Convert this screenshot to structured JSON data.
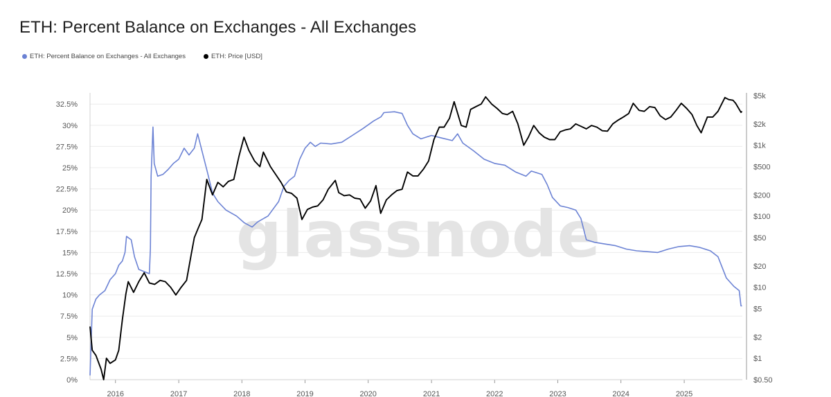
{
  "title": "ETH: Percent Balance on Exchanges - All Exchanges",
  "watermark": "glassnode",
  "legend": [
    {
      "label": "ETH: Percent Balance on Exchanges - All Exchanges",
      "color": "#6b82d4",
      "icon": "legend-dot"
    },
    {
      "label": "ETH: Price [USD]",
      "color": "#000000",
      "icon": "legend-dot"
    }
  ],
  "colors": {
    "balance": "#6b82d4",
    "price": "#000000",
    "grid": "#ececec",
    "axis": "#999999"
  },
  "chart_data": {
    "type": "line",
    "title": "ETH: Percent Balance on Exchanges - All Exchanges",
    "grid": true,
    "legend_position": "top-left",
    "x_ticks": [
      "2016",
      "2017",
      "2018",
      "2019",
      "2020",
      "2021",
      "2022",
      "2023",
      "2024",
      "2025"
    ],
    "y_left_ticks": [
      "0%",
      "2.5%",
      "5%",
      "7.5%",
      "10%",
      "12.5%",
      "15%",
      "17.5%",
      "20%",
      "22.5%",
      "25%",
      "27.5%",
      "30%",
      "32.5%"
    ],
    "y_left_range": [
      0,
      33.5
    ],
    "y_right_ticks": [
      "$0.50",
      "$1",
      "$2",
      "$5",
      "$10",
      "$20",
      "$50",
      "$100",
      "$200",
      "$500",
      "$1k",
      "$2k",
      "$5k"
    ],
    "y_right_scale": "log",
    "y_right_range": [
      0.5,
      5000
    ],
    "series": [
      {
        "name": "ETH: Percent Balance on Exchanges - All Exchanges",
        "axis": "left",
        "color": "#6b82d4",
        "points": [
          [
            "2015-08-07",
            0.5
          ],
          [
            "2015-08-20",
            8.3
          ],
          [
            "2015-09-10",
            9.5
          ],
          [
            "2015-10-01",
            10.0
          ],
          [
            "2015-11-01",
            10.5
          ],
          [
            "2015-12-01",
            11.8
          ],
          [
            "2016-01-01",
            12.5
          ],
          [
            "2016-01-20",
            13.5
          ],
          [
            "2016-02-10",
            14.0
          ],
          [
            "2016-02-25",
            15.0
          ],
          [
            "2016-03-05",
            16.9
          ],
          [
            "2016-04-01",
            16.5
          ],
          [
            "2016-04-20",
            14.5
          ],
          [
            "2016-05-15",
            13.0
          ],
          [
            "2016-07-15",
            12.5
          ],
          [
            "2016-07-21",
            15.5
          ],
          [
            "2016-07-25",
            24.0
          ],
          [
            "2016-08-05",
            29.8
          ],
          [
            "2016-08-12",
            25.5
          ],
          [
            "2016-09-01",
            24.0
          ],
          [
            "2016-10-01",
            24.2
          ],
          [
            "2016-11-01",
            24.8
          ],
          [
            "2016-12-01",
            25.5
          ],
          [
            "2017-01-01",
            26.0
          ],
          [
            "2017-02-01",
            27.3
          ],
          [
            "2017-03-01",
            26.5
          ],
          [
            "2017-04-01",
            27.3
          ],
          [
            "2017-04-20",
            29.0
          ],
          [
            "2017-05-15",
            27.0
          ],
          [
            "2017-06-15",
            24.5
          ],
          [
            "2017-07-15",
            22.0
          ],
          [
            "2017-08-15",
            21.0
          ],
          [
            "2017-10-01",
            20.0
          ],
          [
            "2017-12-01",
            19.3
          ],
          [
            "2018-01-15",
            18.5
          ],
          [
            "2018-03-01",
            18.0
          ],
          [
            "2018-04-01",
            18.6
          ],
          [
            "2018-06-01",
            19.3
          ],
          [
            "2018-08-01",
            21.0
          ],
          [
            "2018-09-01",
            22.8
          ],
          [
            "2018-10-01",
            23.5
          ],
          [
            "2018-11-01",
            24.0
          ],
          [
            "2018-12-01",
            26.0
          ],
          [
            "2019-01-01",
            27.3
          ],
          [
            "2019-02-01",
            28.0
          ],
          [
            "2019-03-01",
            27.5
          ],
          [
            "2019-04-01",
            27.9
          ],
          [
            "2019-06-01",
            27.8
          ],
          [
            "2019-08-01",
            28.0
          ],
          [
            "2019-10-01",
            28.8
          ],
          [
            "2019-12-01",
            29.6
          ],
          [
            "2020-02-01",
            30.5
          ],
          [
            "2020-03-15",
            31.0
          ],
          [
            "2020-04-01",
            31.5
          ],
          [
            "2020-06-01",
            31.6
          ],
          [
            "2020-07-15",
            31.4
          ],
          [
            "2020-08-15",
            30.0
          ],
          [
            "2020-09-15",
            29.0
          ],
          [
            "2020-11-01",
            28.4
          ],
          [
            "2021-01-01",
            28.8
          ],
          [
            "2021-03-01",
            28.5
          ],
          [
            "2021-05-01",
            28.2
          ],
          [
            "2021-06-01",
            29.0
          ],
          [
            "2021-07-01",
            27.9
          ],
          [
            "2021-09-01",
            27.0
          ],
          [
            "2021-11-01",
            26.0
          ],
          [
            "2022-01-01",
            25.5
          ],
          [
            "2022-03-01",
            25.3
          ],
          [
            "2022-05-01",
            24.5
          ],
          [
            "2022-07-01",
            24.0
          ],
          [
            "2022-08-01",
            24.6
          ],
          [
            "2022-10-01",
            24.2
          ],
          [
            "2022-11-01",
            23.0
          ],
          [
            "2022-12-01",
            21.5
          ],
          [
            "2023-01-15",
            20.5
          ],
          [
            "2023-03-01",
            20.3
          ],
          [
            "2023-04-15",
            20.0
          ],
          [
            "2023-05-15",
            19.0
          ],
          [
            "2023-06-15",
            16.5
          ],
          [
            "2023-08-01",
            16.2
          ],
          [
            "2023-10-01",
            16.0
          ],
          [
            "2023-12-01",
            15.8
          ],
          [
            "2024-02-01",
            15.4
          ],
          [
            "2024-04-01",
            15.2
          ],
          [
            "2024-06-01",
            15.1
          ],
          [
            "2024-08-01",
            15.0
          ],
          [
            "2024-10-01",
            15.4
          ],
          [
            "2024-12-01",
            15.7
          ],
          [
            "2025-02-01",
            15.8
          ],
          [
            "2025-04-01",
            15.6
          ],
          [
            "2025-06-01",
            15.2
          ],
          [
            "2025-07-15",
            14.5
          ],
          [
            "2025-09-01",
            12.0
          ],
          [
            "2025-10-15",
            11.0
          ],
          [
            "2025-11-15",
            10.5
          ],
          [
            "2025-11-25",
            8.7
          ],
          [
            "2025-12-01",
            8.7
          ]
        ]
      },
      {
        "name": "ETH: Price [USD]",
        "axis": "right",
        "color": "#000000",
        "points": [
          [
            "2015-08-07",
            2.8
          ],
          [
            "2015-08-20",
            1.3
          ],
          [
            "2015-09-10",
            1.1
          ],
          [
            "2015-10-10",
            0.7
          ],
          [
            "2015-10-25",
            0.5
          ],
          [
            "2015-11-10",
            1.0
          ],
          [
            "2015-12-01",
            0.85
          ],
          [
            "2016-01-01",
            0.95
          ],
          [
            "2016-01-20",
            1.3
          ],
          [
            "2016-02-10",
            3.5
          ],
          [
            "2016-03-01",
            8.0
          ],
          [
            "2016-03-15",
            12.0
          ],
          [
            "2016-04-15",
            8.5
          ],
          [
            "2016-05-15",
            12.0
          ],
          [
            "2016-06-15",
            16.0
          ],
          [
            "2016-07-15",
            11.5
          ],
          [
            "2016-08-15",
            11.0
          ],
          [
            "2016-09-15",
            12.5
          ],
          [
            "2016-10-15",
            12.0
          ],
          [
            "2016-11-15",
            10.0
          ],
          [
            "2016-12-15",
            7.8
          ],
          [
            "2017-01-15",
            10.0
          ],
          [
            "2017-02-15",
            12.5
          ],
          [
            "2017-03-15",
            30.0
          ],
          [
            "2017-04-01",
            50.0
          ],
          [
            "2017-04-20",
            65.0
          ],
          [
            "2017-05-15",
            90.0
          ],
          [
            "2017-06-12",
            330.0
          ],
          [
            "2017-07-15",
            200.0
          ],
          [
            "2017-08-15",
            300.0
          ],
          [
            "2017-09-15",
            260.0
          ],
          [
            "2017-10-15",
            310.0
          ],
          [
            "2017-11-15",
            330.0
          ],
          [
            "2017-12-15",
            700.0
          ],
          [
            "2018-01-13",
            1300.0
          ],
          [
            "2018-02-10",
            850.0
          ],
          [
            "2018-03-15",
            600.0
          ],
          [
            "2018-04-15",
            500.0
          ],
          [
            "2018-05-05",
            800.0
          ],
          [
            "2018-06-15",
            500.0
          ],
          [
            "2018-08-15",
            300.0
          ],
          [
            "2018-09-15",
            220.0
          ],
          [
            "2018-10-15",
            210.0
          ],
          [
            "2018-11-15",
            180.0
          ],
          [
            "2018-12-14",
            90.0
          ],
          [
            "2019-01-15",
            125.0
          ],
          [
            "2019-02-15",
            135.0
          ],
          [
            "2019-03-15",
            140.0
          ],
          [
            "2019-04-15",
            170.0
          ],
          [
            "2019-05-15",
            240.0
          ],
          [
            "2019-06-25",
            320.0
          ],
          [
            "2019-07-15",
            215.0
          ],
          [
            "2019-08-15",
            195.0
          ],
          [
            "2019-09-15",
            200.0
          ],
          [
            "2019-10-15",
            180.0
          ],
          [
            "2019-11-15",
            175.0
          ],
          [
            "2019-12-15",
            130.0
          ],
          [
            "2020-01-15",
            165.0
          ],
          [
            "2020-02-15",
            270.0
          ],
          [
            "2020-03-13",
            110.0
          ],
          [
            "2020-04-15",
            170.0
          ],
          [
            "2020-05-15",
            200.0
          ],
          [
            "2020-06-15",
            230.0
          ],
          [
            "2020-07-15",
            240.0
          ],
          [
            "2020-08-15",
            420.0
          ],
          [
            "2020-09-15",
            370.0
          ],
          [
            "2020-10-15",
            370.0
          ],
          [
            "2020-11-15",
            460.0
          ],
          [
            "2020-12-15",
            600.0
          ],
          [
            "2021-01-15",
            1200.0
          ],
          [
            "2021-02-15",
            1800.0
          ],
          [
            "2021-03-15",
            1800.0
          ],
          [
            "2021-04-15",
            2400.0
          ],
          [
            "2021-05-12",
            4100.0
          ],
          [
            "2021-06-22",
            1900.0
          ],
          [
            "2021-07-20",
            1800.0
          ],
          [
            "2021-08-15",
            3200.0
          ],
          [
            "2021-09-15",
            3500.0
          ],
          [
            "2021-10-15",
            3800.0
          ],
          [
            "2021-11-10",
            4800.0
          ],
          [
            "2021-12-15",
            3800.0
          ],
          [
            "2022-01-15",
            3300.0
          ],
          [
            "2022-02-15",
            2800.0
          ],
          [
            "2022-03-15",
            2700.0
          ],
          [
            "2022-04-15",
            3000.0
          ],
          [
            "2022-05-15",
            2000.0
          ],
          [
            "2022-06-18",
            1000.0
          ],
          [
            "2022-07-15",
            1300.0
          ],
          [
            "2022-08-15",
            1900.0
          ],
          [
            "2022-09-15",
            1500.0
          ],
          [
            "2022-10-15",
            1300.0
          ],
          [
            "2022-11-15",
            1200.0
          ],
          [
            "2022-12-15",
            1200.0
          ],
          [
            "2023-01-15",
            1550.0
          ],
          [
            "2023-02-15",
            1650.0
          ],
          [
            "2023-03-15",
            1700.0
          ],
          [
            "2023-04-15",
            2000.0
          ],
          [
            "2023-05-15",
            1850.0
          ],
          [
            "2023-06-15",
            1700.0
          ],
          [
            "2023-07-15",
            1900.0
          ],
          [
            "2023-08-15",
            1800.0
          ],
          [
            "2023-09-15",
            1600.0
          ],
          [
            "2023-10-15",
            1580.0
          ],
          [
            "2023-11-15",
            2000.0
          ],
          [
            "2023-12-15",
            2250.0
          ],
          [
            "2024-01-15",
            2500.0
          ],
          [
            "2024-02-15",
            2800.0
          ],
          [
            "2024-03-12",
            3900.0
          ],
          [
            "2024-04-15",
            3100.0
          ],
          [
            "2024-05-15",
            3000.0
          ],
          [
            "2024-06-15",
            3500.0
          ],
          [
            "2024-07-15",
            3400.0
          ],
          [
            "2024-08-15",
            2600.0
          ],
          [
            "2024-09-15",
            2300.0
          ],
          [
            "2024-10-15",
            2500.0
          ],
          [
            "2024-11-15",
            3100.0
          ],
          [
            "2024-12-15",
            3900.0
          ],
          [
            "2025-01-15",
            3300.0
          ],
          [
            "2025-02-15",
            2700.0
          ],
          [
            "2025-03-15",
            1900.0
          ],
          [
            "2025-04-09",
            1500.0
          ],
          [
            "2025-05-15",
            2500.0
          ],
          [
            "2025-06-15",
            2500.0
          ],
          [
            "2025-07-15",
            3000.0
          ],
          [
            "2025-08-24",
            4700.0
          ],
          [
            "2025-09-15",
            4400.0
          ],
          [
            "2025-10-10",
            4300.0
          ],
          [
            "2025-10-25",
            3900.0
          ],
          [
            "2025-11-15",
            3200.0
          ],
          [
            "2025-11-25",
            2900.0
          ],
          [
            "2025-12-01",
            3000.0
          ]
        ]
      }
    ]
  }
}
